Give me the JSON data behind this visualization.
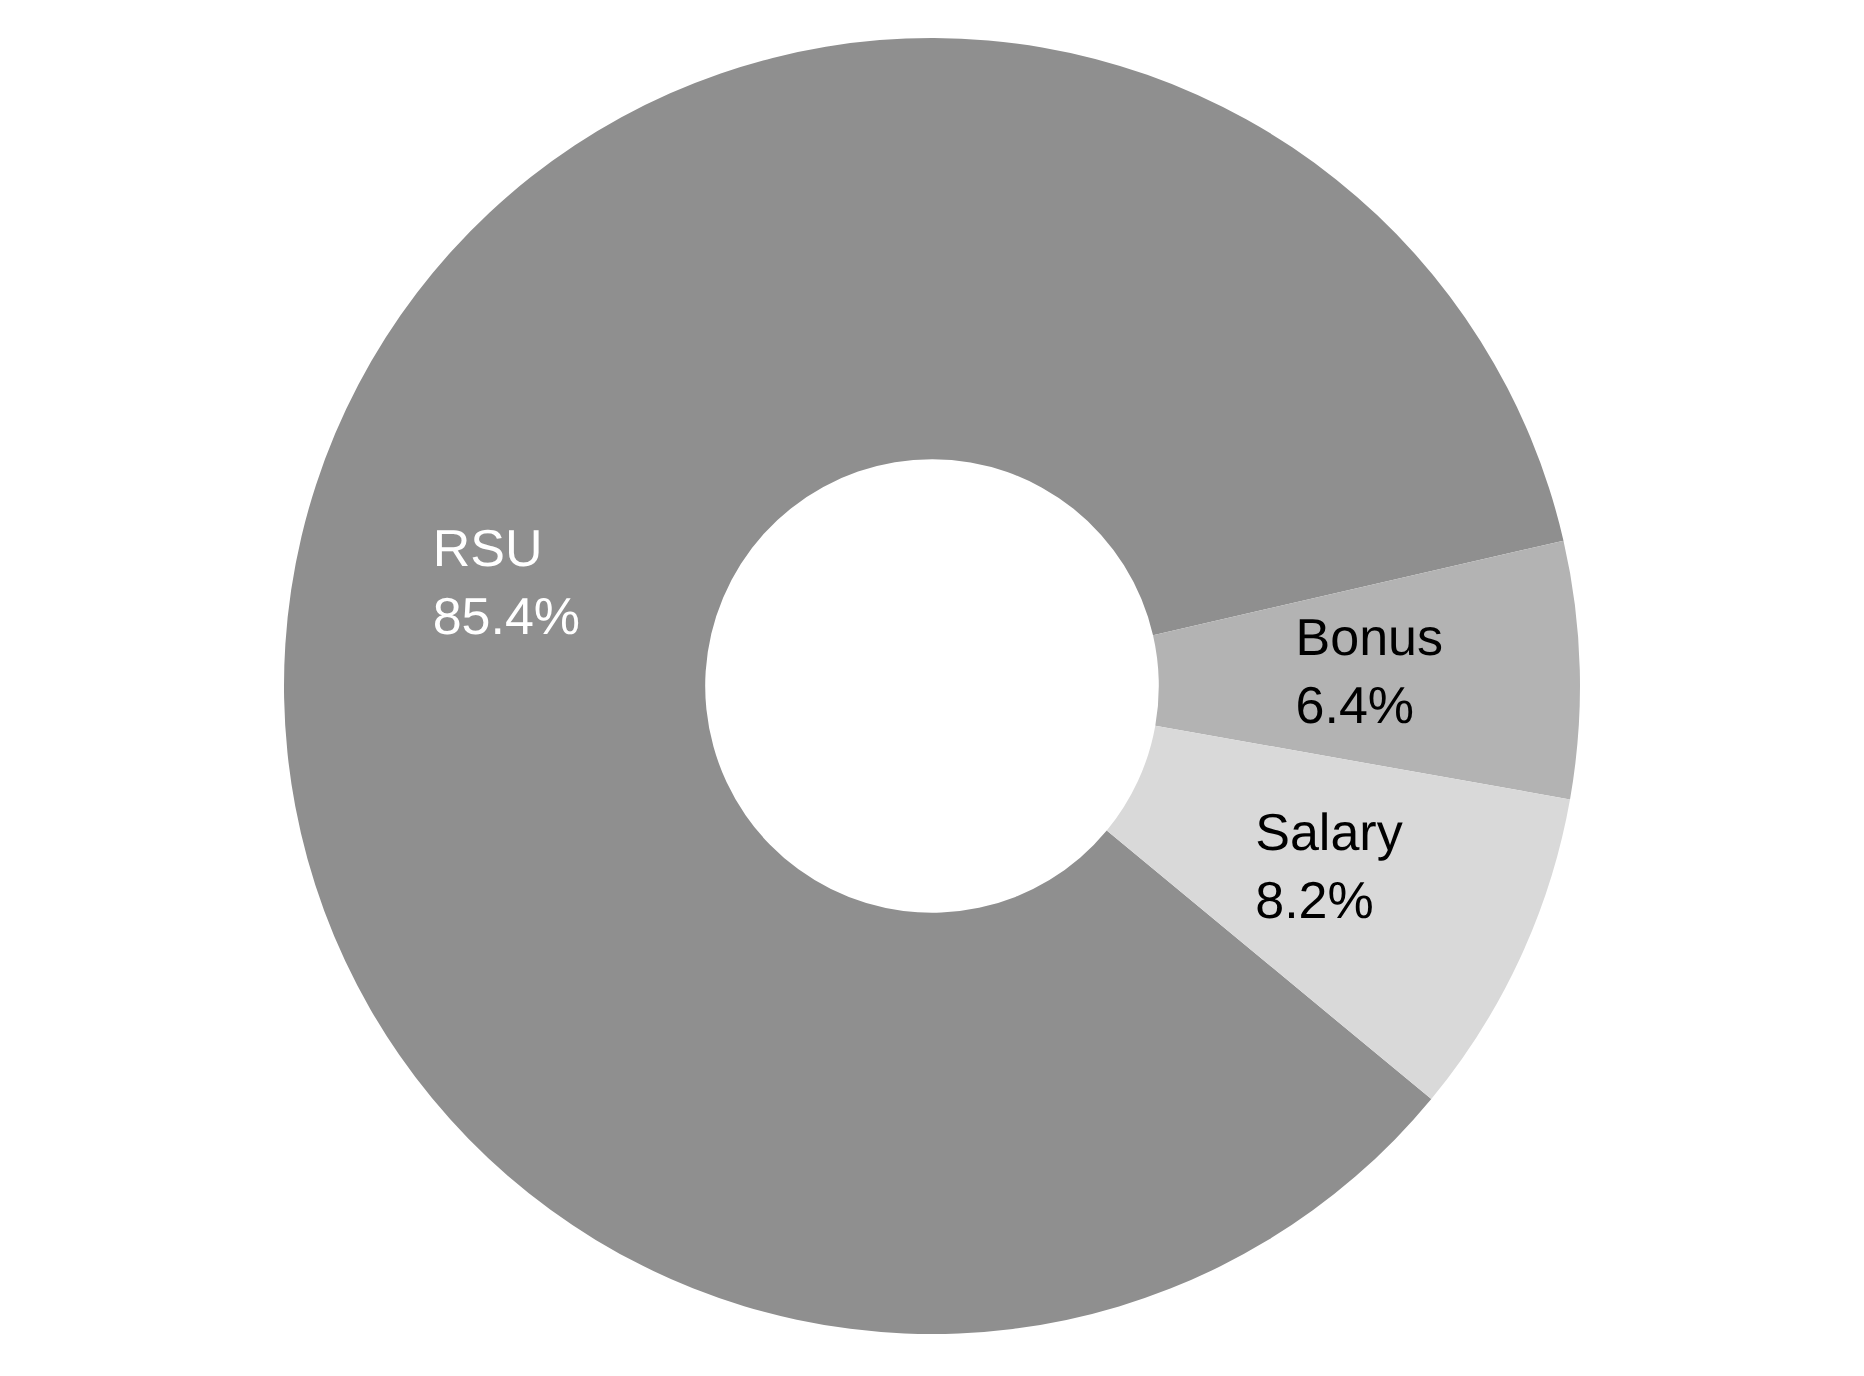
{
  "chart_data": {
    "type": "donut",
    "categories": [
      "RSU",
      "Bonus",
      "Salary"
    ],
    "values": [
      85.4,
      6.4,
      8.2
    ],
    "colors": [
      "#8f8f8f",
      "#b3b3b3",
      "#d9d9d9"
    ],
    "value_labels": [
      "85.4%",
      "6.4%",
      "8.2%"
    ],
    "legend": false
  }
}
